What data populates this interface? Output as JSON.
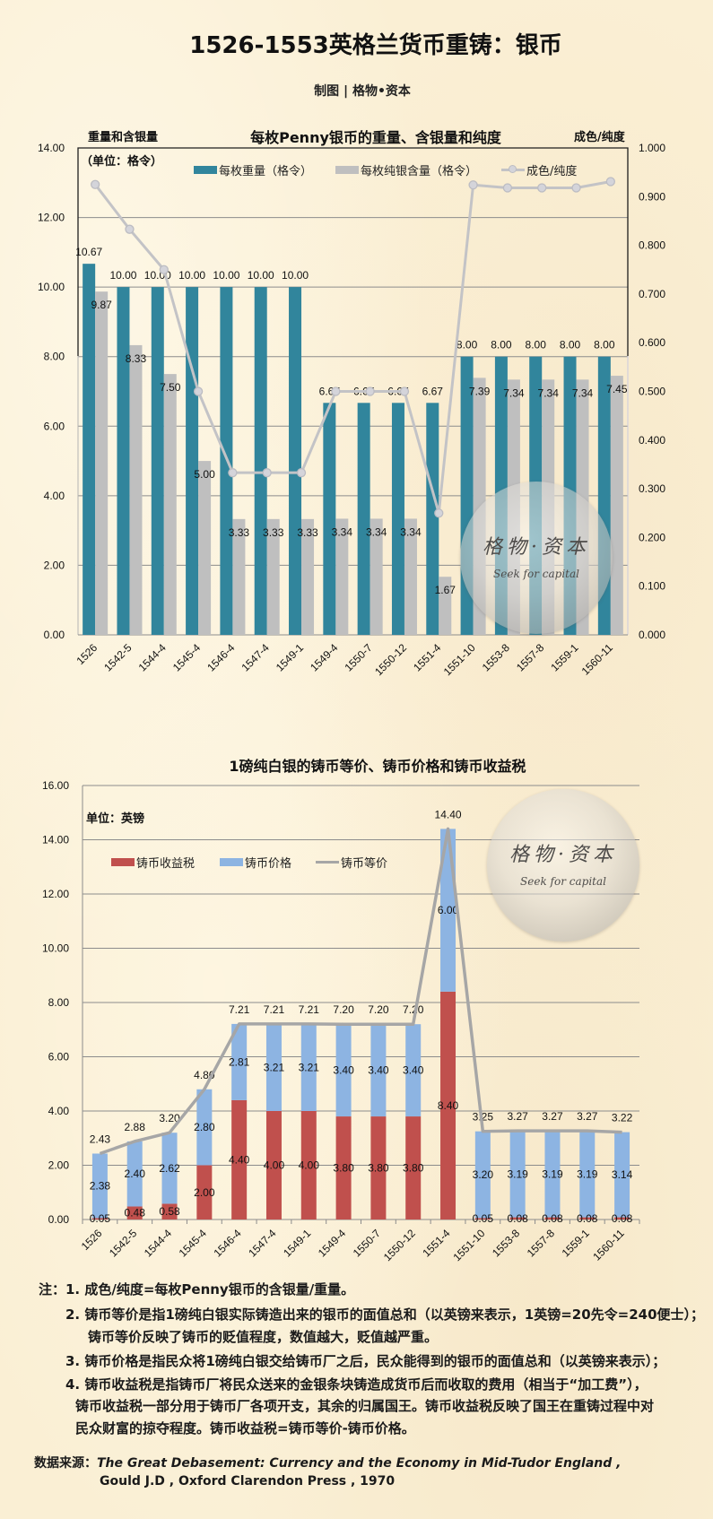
{
  "page": {
    "title": "1526-1553英格兰货币重铸：银币",
    "subtitle": "制图 | 格物•资本"
  },
  "watermark": {
    "cn": "格物·资本",
    "en": "Seek for capital"
  },
  "chart_data": [
    {
      "type": "bar",
      "combo": "clustered bar + line (secondary axis)",
      "title": "每枚Penny银币的重量、含银量和纯度",
      "ylabel": "重量和含银量",
      "ylabel_unit": "（单位：格令）",
      "y2label": "成色/纯度",
      "xlabel": "",
      "categories": [
        "1526",
        "1542-5",
        "1544-4",
        "1545-4",
        "1546-4",
        "1547-4",
        "1549-1",
        "1549-4",
        "1550-7",
        "1550-12",
        "1551-4",
        "1551-10",
        "1553-8",
        "1557-8",
        "1559-1",
        "1560-11"
      ],
      "ylim": [
        0,
        14
      ],
      "ytick": 2,
      "y2lim": [
        0,
        1
      ],
      "y2tick": 0.1,
      "grid": true,
      "legend_position": "top",
      "series": [
        {
          "name": "每枚重量（格令）",
          "type": "bar",
          "axis": "left",
          "color": "#31859C",
          "values": [
            10.67,
            10.0,
            10.0,
            10.0,
            10.0,
            10.0,
            10.0,
            6.67,
            6.67,
            6.67,
            6.67,
            8.0,
            8.0,
            8.0,
            8.0,
            8.0
          ]
        },
        {
          "name": "每枚纯银含量（格令）",
          "type": "bar",
          "axis": "left",
          "color": "#BFBFBF",
          "values": [
            9.87,
            8.33,
            7.5,
            5.0,
            3.33,
            3.33,
            3.33,
            3.34,
            3.34,
            3.34,
            1.67,
            7.39,
            7.34,
            7.34,
            7.34,
            7.45
          ]
        },
        {
          "name": "成色/纯度",
          "type": "line",
          "axis": "right",
          "color": "#C3C3C6",
          "marker_color": "#D4D4DA",
          "values": [
            0.925,
            0.833,
            0.75,
            0.5,
            0.333,
            0.333,
            0.333,
            0.5,
            0.5,
            0.5,
            0.25,
            0.924,
            0.918,
            0.918,
            0.918,
            0.931
          ]
        }
      ]
    },
    {
      "type": "bar",
      "combo": "stacked bar + line",
      "title": "1磅纯白银的铸币等价、铸币价格和铸币收益税",
      "ylabel": "单位：英镑",
      "xlabel": "",
      "categories": [
        "1526",
        "1542-5",
        "1544-4",
        "1545-4",
        "1546-4",
        "1547-4",
        "1549-1",
        "1549-4",
        "1550-7",
        "1550-12",
        "1551-4",
        "1551-10",
        "1553-8",
        "1557-8",
        "1559-1",
        "1560-11"
      ],
      "ylim": [
        0,
        16
      ],
      "ytick": 2,
      "grid": true,
      "legend_position": "top-left",
      "series": [
        {
          "name": "铸币收益税",
          "type": "bar",
          "stack": "total",
          "color": "#C0504D",
          "values": [
            0.05,
            0.48,
            0.58,
            2.0,
            4.4,
            4.0,
            4.0,
            3.8,
            3.8,
            3.8,
            8.4,
            0.05,
            0.08,
            0.08,
            0.08,
            0.08
          ]
        },
        {
          "name": "铸币价格",
          "type": "bar",
          "stack": "total",
          "color": "#8DB4E2",
          "values": [
            2.38,
            2.4,
            2.62,
            2.8,
            2.81,
            3.21,
            3.21,
            3.4,
            3.4,
            3.4,
            6.0,
            3.2,
            3.19,
            3.19,
            3.19,
            3.14
          ]
        },
        {
          "name": "铸币等价",
          "type": "line",
          "color": "#A6A6A6",
          "values": [
            2.43,
            2.88,
            3.2,
            4.8,
            7.21,
            7.21,
            7.21,
            7.2,
            7.2,
            7.2,
            14.4,
            3.25,
            3.27,
            3.27,
            3.27,
            3.22
          ]
        }
      ]
    }
  ],
  "notes": {
    "lines": [
      "注：1. 成色/纯度=每枚Penny银币的含银量/重量。",
      "2. 铸币等价是指1磅纯白银实际铸造出来的银币的面值总和（以英镑来表示，1英镑=20先令=240便士）；",
      "铸币等价反映了铸币的贬值程度，数值越大，贬值越严重。",
      "3. 铸币价格是指民众将1磅纯白银交给铸币厂之后，民众能得到的银币的面值总和（以英镑来表示）；",
      "4. 铸币收益税是指铸币厂将民众送来的金银条块铸造成货币后而收取的费用（相当于“加工费”），",
      "铸币收益税一部分用于铸币厂各项开支，其余的归属国王。铸币收益税反映了国王在重铸过程中对",
      "民众财富的掠夺程度。铸币收益税=铸币等价-铸币价格。"
    ]
  },
  "source": {
    "label": "数据来源：",
    "title": "The Great Debasement: Currency and the Economy in Mid-Tudor England ,",
    "publisher": "Gould  J.D , Oxford Clarendon Press , 1970"
  }
}
